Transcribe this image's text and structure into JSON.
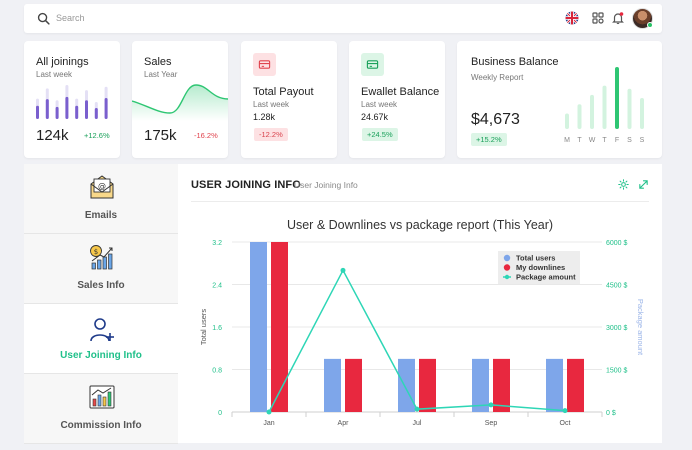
{
  "topbar": {
    "search_placeholder": "Search"
  },
  "cards": {
    "joinings": {
      "title": "All joinings",
      "subtitle": "Last week",
      "value": "124k",
      "change": "+12.6%",
      "bars": [
        0.6,
        0.9,
        0.55,
        1.0,
        0.6,
        0.85,
        0.5,
        0.95
      ]
    },
    "sales": {
      "title": "Sales",
      "subtitle": "Last Year",
      "value": "175k",
      "change": "-16.2%"
    },
    "payout": {
      "title": "Total Payout",
      "subtitle": "Last week",
      "value": "1.28k",
      "change": "-12.2%"
    },
    "ewallet": {
      "title": "Ewallet Balance",
      "subtitle": "Last week",
      "value": "24.67k",
      "change": "+24.5%"
    },
    "balance": {
      "title": "Business Balance",
      "subtitle": "Weekly Report",
      "value": "$4,673",
      "change": "+15.2%",
      "days": [
        "M",
        "T",
        "W",
        "T",
        "F",
        "S",
        "S"
      ],
      "bars": [
        0.25,
        0.4,
        0.55,
        0.7,
        1.0,
        0.65,
        0.5
      ],
      "highlight_index": 4
    }
  },
  "sidebar": {
    "items": [
      {
        "label": "Emails"
      },
      {
        "label": "Sales Info"
      },
      {
        "label": "User Joining Info"
      },
      {
        "label": "Commission Info"
      }
    ],
    "active_index": 2
  },
  "main": {
    "title": "USER JOINING INFO",
    "subtitle": "User Joining Info"
  },
  "chart_data": {
    "type": "bar",
    "title": "User & Downlines vs package report (This Year)",
    "categories": [
      "Jan",
      "Apr",
      "Jul",
      "Sep",
      "Oct"
    ],
    "ylabel": "Total users",
    "y2label": "Package amount",
    "ylim": [
      0,
      3.2
    ],
    "yticks": [
      "0",
      "0.8",
      "1.6",
      "2.4",
      "3.2"
    ],
    "y2lim": [
      0,
      6000
    ],
    "y2ticks": [
      "0 $",
      "1500 $",
      "3000 $",
      "4500 $",
      "6000 $"
    ],
    "legend_position": "top-right",
    "series": [
      {
        "name": "Total users",
        "type": "bar",
        "color": "#7ea6ea",
        "values": [
          3.2,
          1.0,
          1.0,
          1.0,
          1.0
        ]
      },
      {
        "name": "My downlines",
        "type": "bar",
        "color": "#e8283f",
        "values": [
          3.2,
          1.0,
          1.0,
          1.0,
          1.0
        ]
      },
      {
        "name": "Package amount",
        "type": "line",
        "axis": "y2",
        "color": "#2ed6b6",
        "values": [
          0,
          5000,
          100,
          250,
          50
        ]
      }
    ]
  }
}
